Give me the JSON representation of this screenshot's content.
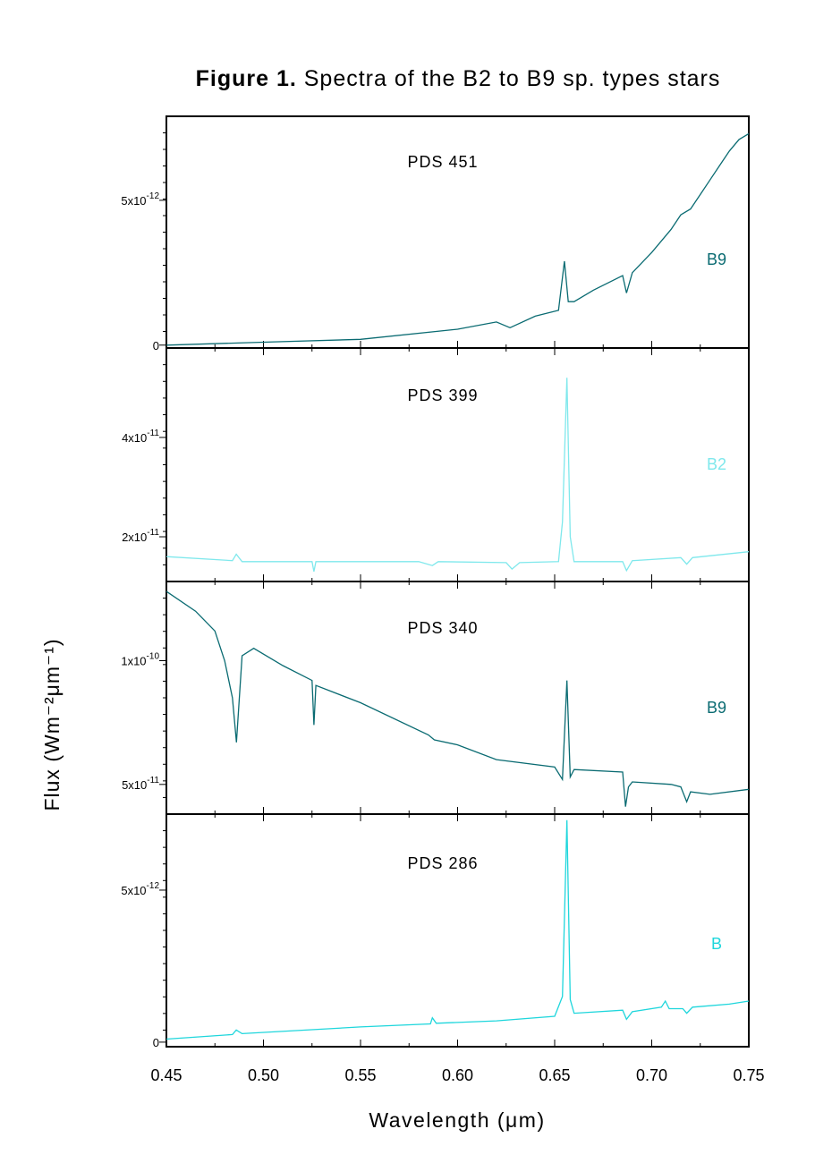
{
  "figure": {
    "title_bold": "Figure 1.",
    "title_rest": " Spectra of the B2 to B9 sp. types stars",
    "xlabel": "Wavelength (μm)",
    "ylabel": "Flux (Wm⁻²μm⁻¹)"
  },
  "chart_data": [
    {
      "type": "line",
      "star": "PDS 451",
      "sptype": "B9",
      "color": "#0a6b72",
      "xlim": [
        0.45,
        0.75
      ],
      "ylim": [
        -1e-13,
        7.9e-12
      ],
      "ytick_values": [
        0,
        5e-12
      ],
      "ytick_labels": [
        {
          "mant": "0",
          "exp": ""
        },
        {
          "mant": "5x10",
          "exp": "-12"
        }
      ],
      "x": [
        0.45,
        0.5,
        0.55,
        0.6,
        0.62,
        0.627,
        0.64,
        0.652,
        0.655,
        0.657,
        0.66,
        0.67,
        0.685,
        0.687,
        0.69,
        0.7,
        0.71,
        0.715,
        0.72,
        0.725,
        0.73,
        0.735,
        0.74,
        0.745,
        0.75
      ],
      "y": [
        0.0,
        1e-13,
        2e-13,
        5.5e-13,
        8e-13,
        6e-13,
        1e-12,
        1.2e-12,
        2.9e-12,
        1.5e-12,
        1.5e-12,
        1.9e-12,
        2.4e-12,
        1.8e-12,
        2.5e-12,
        3.2e-12,
        4e-12,
        4.5e-12,
        4.7e-12,
        5.2e-12,
        5.7e-12,
        6.2e-12,
        6.7e-12,
        7.1e-12,
        7.3e-12
      ]
    },
    {
      "type": "line",
      "star": "PDS 399",
      "sptype": "B2",
      "color": "#7fe8ec",
      "xlim": [
        0.45,
        0.75
      ],
      "ylim": [
        1.1e-11,
        5.8e-11
      ],
      "ytick_values": [
        2e-11,
        4e-11
      ],
      "ytick_labels": [
        {
          "mant": "2x10",
          "exp": "-11"
        },
        {
          "mant": "4x10",
          "exp": "-11"
        }
      ],
      "x": [
        0.45,
        0.484,
        0.486,
        0.489,
        0.525,
        0.526,
        0.527,
        0.58,
        0.587,
        0.59,
        0.625,
        0.628,
        0.632,
        0.652,
        0.654,
        0.6563,
        0.658,
        0.66,
        0.685,
        0.687,
        0.69,
        0.715,
        0.718,
        0.721,
        0.75
      ],
      "y": [
        1.6e-11,
        1.52e-11,
        1.65e-11,
        1.5e-11,
        1.5e-11,
        1.3e-11,
        1.5e-11,
        1.5e-11,
        1.42e-11,
        1.5e-11,
        1.48e-11,
        1.35e-11,
        1.48e-11,
        1.5e-11,
        2.3e-11,
        5.2e-11,
        2e-11,
        1.5e-11,
        1.5e-11,
        1.32e-11,
        1.52e-11,
        1.58e-11,
        1.45e-11,
        1.58e-11,
        1.7e-11
      ]
    },
    {
      "type": "line",
      "star": "PDS 340",
      "sptype": "B9",
      "color": "#0a6b72",
      "xlim": [
        0.45,
        0.75
      ],
      "ylim": [
        3.8e-11,
        1.32e-10
      ],
      "ytick_values": [
        5e-11,
        1e-10
      ],
      "ytick_labels": [
        {
          "mant": "5x10",
          "exp": "-11"
        },
        {
          "mant": "1x10",
          "exp": "-10"
        }
      ],
      "x": [
        0.45,
        0.465,
        0.475,
        0.48,
        0.484,
        0.4861,
        0.489,
        0.495,
        0.51,
        0.525,
        0.526,
        0.527,
        0.55,
        0.585,
        0.588,
        0.6,
        0.62,
        0.65,
        0.654,
        0.6563,
        0.658,
        0.66,
        0.685,
        0.6865,
        0.688,
        0.69,
        0.71,
        0.715,
        0.718,
        0.72,
        0.73,
        0.75
      ],
      "y": [
        1.28e-10,
        1.2e-10,
        1.12e-10,
        1e-10,
        8.5e-11,
        6.7e-11,
        1.02e-10,
        1.05e-10,
        9.8e-11,
        9.2e-11,
        7.4e-11,
        9e-11,
        8.3e-11,
        7e-11,
        6.8e-11,
        6.6e-11,
        6e-11,
        5.7e-11,
        5.2e-11,
        9.2e-11,
        5.3e-11,
        5.6e-11,
        5.5e-11,
        4.1e-11,
        4.9e-11,
        5.1e-11,
        5e-11,
        4.9e-11,
        4.3e-11,
        4.7e-11,
        4.6e-11,
        4.8e-11
      ]
    },
    {
      "type": "line",
      "star": "PDS 286",
      "sptype": "B",
      "color": "#1ed6dc",
      "xlim": [
        0.45,
        0.75
      ],
      "ylim": [
        -1.5e-13,
        7.5e-12
      ],
      "ytick_values": [
        0,
        5e-12
      ],
      "ytick_labels": [
        {
          "mant": "0",
          "exp": ""
        },
        {
          "mant": "5x10",
          "exp": "-12"
        }
      ],
      "x": [
        0.45,
        0.484,
        0.486,
        0.489,
        0.55,
        0.586,
        0.587,
        0.589,
        0.62,
        0.65,
        0.654,
        0.6563,
        0.658,
        0.66,
        0.685,
        0.687,
        0.69,
        0.705,
        0.707,
        0.709,
        0.716,
        0.718,
        0.721,
        0.74,
        0.75
      ],
      "y": [
        1e-13,
        2.5e-13,
        4e-13,
        2.8e-13,
        5e-13,
        6e-13,
        8e-13,
        6.2e-13,
        7e-13,
        8.5e-13,
        1.5e-12,
        7.3e-12,
        1.4e-12,
        9.5e-13,
        1.05e-12,
        7.5e-13,
        1e-12,
        1.15e-12,
        1.35e-12,
        1.1e-12,
        1.1e-12,
        9.5e-13,
        1.15e-12,
        1.25e-12,
        1.35e-12
      ]
    }
  ],
  "xtick_labels": [
    "0.45",
    "0.50",
    "0.55",
    "0.60",
    "0.65",
    "0.70",
    "0.75"
  ]
}
